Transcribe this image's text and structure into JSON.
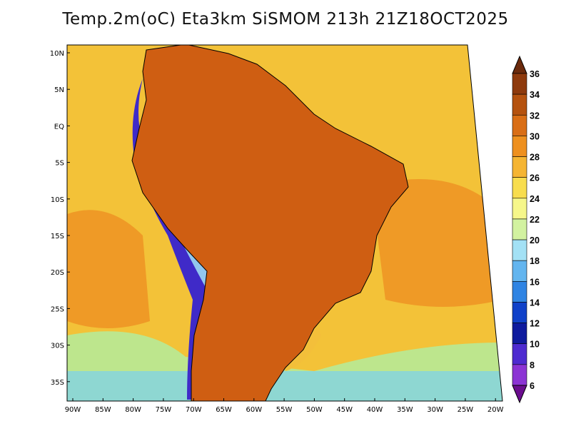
{
  "title": "Temp.2m(oC) Eta3km SiSMOM 213h 21Z18OCT2025",
  "axes": {
    "lat_labels": [
      "10N",
      "5N",
      "EQ",
      "5S",
      "10S",
      "15S",
      "20S",
      "25S",
      "30S",
      "35S"
    ],
    "lon_labels": [
      "90W",
      "85W",
      "80W",
      "75W",
      "70W",
      "65W",
      "60W",
      "55W",
      "50W",
      "45W",
      "40W",
      "35W",
      "30W",
      "25W",
      "20W"
    ]
  },
  "colorbar": {
    "labels": [
      "36",
      "34",
      "32",
      "30",
      "28",
      "26",
      "24",
      "22",
      "20",
      "18",
      "16",
      "14",
      "12",
      "10",
      "8",
      "6"
    ],
    "colors": [
      "#6b2a0c",
      "#8e3a0d",
      "#b5520f",
      "#d96e16",
      "#ee901f",
      "#f5b533",
      "#f8dd4e",
      "#f6f78a",
      "#d2f2a0",
      "#a3e1f5",
      "#63b5ef",
      "#2f84e3",
      "#1041c9",
      "#0f1b9e",
      "#4e2bd0",
      "#8c34d4",
      "#6b0d8f"
    ]
  },
  "colors": {
    "ocean_north": "#f3c238",
    "ocean_warm": "#ef9a26",
    "ocean_south": "#b3ec9c",
    "land_hot": "#cf5e12",
    "land_dark": "#9a4410",
    "andes": "#3f2ac8",
    "border": "#000000"
  }
}
